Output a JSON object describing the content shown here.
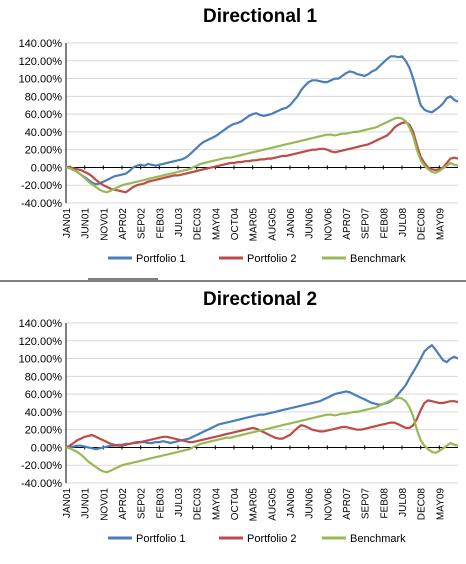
{
  "colors": {
    "portfolio_1": "#4a7ebb",
    "portfolio_2": "#be4b48",
    "benchmark": "#98b954"
  },
  "chart_data": [
    {
      "type": "line",
      "title": "Directional 1",
      "xlabel": "",
      "ylabel": "",
      "ylim": [
        -0.4,
        1.4
      ],
      "yticks": [
        "140.00%",
        "120.00%",
        "100.00%",
        "80.00%",
        "60.00%",
        "40.00%",
        "20.00%",
        "0.00%",
        "-20.00%",
        "-40.00%"
      ],
      "xticks": [
        "JAN01",
        "JUN01",
        "NOV01",
        "APR02",
        "SEP02",
        "FEB03",
        "JUL03",
        "DEC03",
        "MAY04",
        "OCT04",
        "MAR05",
        "AUG05",
        "JAN06",
        "JUN06",
        "NOV06",
        "APR07",
        "SEP07",
        "FEB08",
        "JUL08",
        "DEC08",
        "MAY09"
      ],
      "legend": "bottom",
      "grid": true,
      "x_start": "JAN01",
      "x_step": "1 month",
      "series": [
        {
          "name": "Portfolio 1",
          "color_key": "portfolio_1",
          "values": [
            0.0,
            0.01,
            -0.02,
            -0.05,
            -0.08,
            -0.11,
            -0.14,
            -0.17,
            -0.19,
            -0.18,
            -0.16,
            -0.14,
            -0.12,
            -0.1,
            -0.09,
            -0.08,
            -0.07,
            -0.04,
            0.0,
            0.02,
            0.03,
            0.02,
            0.04,
            0.03,
            0.02,
            0.03,
            0.04,
            0.05,
            0.06,
            0.07,
            0.08,
            0.09,
            0.11,
            0.14,
            0.18,
            0.22,
            0.26,
            0.29,
            0.31,
            0.33,
            0.35,
            0.38,
            0.41,
            0.44,
            0.47,
            0.49,
            0.5,
            0.52,
            0.55,
            0.58,
            0.6,
            0.61,
            0.59,
            0.58,
            0.59,
            0.6,
            0.62,
            0.64,
            0.66,
            0.67,
            0.7,
            0.75,
            0.8,
            0.87,
            0.92,
            0.96,
            0.98,
            0.98,
            0.97,
            0.96,
            0.96,
            0.98,
            1.0,
            1.0,
            1.03,
            1.06,
            1.08,
            1.07,
            1.05,
            1.04,
            1.03,
            1.05,
            1.08,
            1.1,
            1.14,
            1.18,
            1.22,
            1.25,
            1.25,
            1.24,
            1.25,
            1.2,
            1.12,
            1.0,
            0.85,
            0.7,
            0.65,
            0.63,
            0.62,
            0.65,
            0.68,
            0.72,
            0.78,
            0.8,
            0.76,
            0.74
          ]
        },
        {
          "name": "Portfolio 2",
          "color_key": "portfolio_2",
          "values": [
            0.0,
            0.0,
            -0.01,
            -0.02,
            -0.03,
            -0.05,
            -0.07,
            -0.1,
            -0.14,
            -0.17,
            -0.2,
            -0.22,
            -0.24,
            -0.25,
            -0.26,
            -0.27,
            -0.28,
            -0.25,
            -0.22,
            -0.2,
            -0.19,
            -0.18,
            -0.16,
            -0.15,
            -0.14,
            -0.13,
            -0.12,
            -0.11,
            -0.1,
            -0.09,
            -0.09,
            -0.08,
            -0.07,
            -0.06,
            -0.05,
            -0.04,
            -0.03,
            -0.02,
            -0.01,
            0.0,
            0.01,
            0.02,
            0.03,
            0.04,
            0.05,
            0.05,
            0.06,
            0.06,
            0.07,
            0.07,
            0.08,
            0.08,
            0.09,
            0.09,
            0.1,
            0.1,
            0.11,
            0.12,
            0.13,
            0.13,
            0.14,
            0.15,
            0.16,
            0.17,
            0.18,
            0.19,
            0.2,
            0.2,
            0.21,
            0.21,
            0.2,
            0.18,
            0.17,
            0.18,
            0.19,
            0.2,
            0.21,
            0.22,
            0.23,
            0.24,
            0.25,
            0.26,
            0.28,
            0.3,
            0.32,
            0.34,
            0.36,
            0.4,
            0.45,
            0.48,
            0.5,
            0.51,
            0.48,
            0.4,
            0.25,
            0.12,
            0.05,
            0.0,
            -0.02,
            -0.03,
            -0.02,
            0.0,
            0.05,
            0.1,
            0.11,
            0.1
          ]
        },
        {
          "name": "Benchmark",
          "color_key": "benchmark",
          "values": [
            0.0,
            -0.01,
            -0.03,
            -0.05,
            -0.08,
            -0.12,
            -0.16,
            -0.19,
            -0.22,
            -0.25,
            -0.27,
            -0.28,
            -0.26,
            -0.24,
            -0.22,
            -0.2,
            -0.19,
            -0.18,
            -0.17,
            -0.16,
            -0.15,
            -0.14,
            -0.13,
            -0.12,
            -0.11,
            -0.1,
            -0.09,
            -0.08,
            -0.07,
            -0.06,
            -0.05,
            -0.04,
            -0.03,
            -0.02,
            0.0,
            0.02,
            0.04,
            0.05,
            0.06,
            0.07,
            0.08,
            0.09,
            0.1,
            0.11,
            0.11,
            0.12,
            0.13,
            0.14,
            0.15,
            0.16,
            0.17,
            0.18,
            0.19,
            0.2,
            0.21,
            0.22,
            0.23,
            0.24,
            0.25,
            0.26,
            0.27,
            0.28,
            0.29,
            0.3,
            0.31,
            0.32,
            0.33,
            0.34,
            0.35,
            0.36,
            0.37,
            0.37,
            0.36,
            0.37,
            0.38,
            0.38,
            0.39,
            0.4,
            0.4,
            0.41,
            0.42,
            0.43,
            0.44,
            0.45,
            0.47,
            0.49,
            0.51,
            0.53,
            0.55,
            0.56,
            0.55,
            0.52,
            0.45,
            0.35,
            0.2,
            0.08,
            0.02,
            -0.02,
            -0.05,
            -0.06,
            -0.04,
            -0.01,
            0.02,
            0.05,
            0.03,
            0.02
          ]
        }
      ]
    },
    {
      "type": "line",
      "title": "Directional 2",
      "xlabel": "",
      "ylabel": "",
      "ylim": [
        -0.4,
        1.4
      ],
      "yticks": [
        "140.00%",
        "120.00%",
        "100.00%",
        "80.00%",
        "60.00%",
        "40.00%",
        "20.00%",
        "0.00%",
        "-20.00%",
        "-40.00%"
      ],
      "xticks": [
        "JAN01",
        "JUN01",
        "NOV01",
        "APR02",
        "SEP02",
        "FEB03",
        "JUL03",
        "DEC03",
        "MAY04",
        "OCT04",
        "MAR05",
        "AUG05",
        "JAN06",
        "JUN06",
        "NOV06",
        "APR07",
        "SEP07",
        "FEB08",
        "JUL08",
        "DEC08",
        "MAY09"
      ],
      "legend": "bottom",
      "grid": true,
      "x_start": "JAN01",
      "x_step": "1 month",
      "series": [
        {
          "name": "Portfolio 1",
          "color_key": "portfolio_1",
          "values": [
            0.0,
            0.0,
            0.01,
            0.02,
            0.02,
            0.01,
            0.0,
            -0.01,
            -0.02,
            -0.01,
            0.0,
            0.01,
            0.02,
            0.02,
            0.03,
            0.03,
            0.04,
            0.04,
            0.05,
            0.05,
            0.06,
            0.06,
            0.05,
            0.05,
            0.06,
            0.06,
            0.07,
            0.06,
            0.05,
            0.06,
            0.07,
            0.08,
            0.09,
            0.1,
            0.12,
            0.14,
            0.16,
            0.18,
            0.2,
            0.22,
            0.24,
            0.26,
            0.27,
            0.28,
            0.29,
            0.3,
            0.31,
            0.32,
            0.33,
            0.34,
            0.35,
            0.36,
            0.37,
            0.37,
            0.38,
            0.39,
            0.4,
            0.41,
            0.42,
            0.43,
            0.44,
            0.45,
            0.46,
            0.47,
            0.48,
            0.49,
            0.5,
            0.51,
            0.52,
            0.54,
            0.56,
            0.58,
            0.6,
            0.61,
            0.62,
            0.63,
            0.62,
            0.6,
            0.58,
            0.56,
            0.54,
            0.52,
            0.5,
            0.49,
            0.48,
            0.49,
            0.5,
            0.52,
            0.55,
            0.6,
            0.65,
            0.7,
            0.78,
            0.85,
            0.92,
            1.0,
            1.08,
            1.12,
            1.15,
            1.1,
            1.04,
            0.98,
            0.96,
            1.0,
            1.02,
            1.0
          ]
        },
        {
          "name": "Portfolio 2",
          "color_key": "portfolio_2",
          "values": [
            0.0,
            0.02,
            0.05,
            0.08,
            0.1,
            0.12,
            0.13,
            0.14,
            0.12,
            0.1,
            0.08,
            0.06,
            0.04,
            0.03,
            0.02,
            0.02,
            0.03,
            0.04,
            0.05,
            0.06,
            0.06,
            0.07,
            0.08,
            0.09,
            0.1,
            0.11,
            0.12,
            0.12,
            0.11,
            0.1,
            0.09,
            0.08,
            0.07,
            0.06,
            0.06,
            0.07,
            0.08,
            0.09,
            0.1,
            0.11,
            0.12,
            0.13,
            0.14,
            0.15,
            0.16,
            0.17,
            0.18,
            0.19,
            0.2,
            0.21,
            0.22,
            0.21,
            0.19,
            0.17,
            0.15,
            0.13,
            0.11,
            0.1,
            0.1,
            0.12,
            0.14,
            0.18,
            0.22,
            0.25,
            0.24,
            0.22,
            0.2,
            0.19,
            0.18,
            0.18,
            0.19,
            0.2,
            0.21,
            0.22,
            0.23,
            0.23,
            0.22,
            0.21,
            0.2,
            0.2,
            0.21,
            0.22,
            0.23,
            0.24,
            0.25,
            0.26,
            0.27,
            0.28,
            0.28,
            0.26,
            0.24,
            0.22,
            0.22,
            0.25,
            0.32,
            0.42,
            0.5,
            0.53,
            0.52,
            0.51,
            0.5,
            0.5,
            0.51,
            0.52,
            0.52,
            0.51
          ]
        },
        {
          "name": "Benchmark",
          "color_key": "benchmark",
          "values": [
            0.0,
            -0.01,
            -0.03,
            -0.05,
            -0.08,
            -0.12,
            -0.16,
            -0.19,
            -0.22,
            -0.25,
            -0.27,
            -0.28,
            -0.26,
            -0.24,
            -0.22,
            -0.2,
            -0.19,
            -0.18,
            -0.17,
            -0.16,
            -0.15,
            -0.14,
            -0.13,
            -0.12,
            -0.11,
            -0.1,
            -0.09,
            -0.08,
            -0.07,
            -0.06,
            -0.05,
            -0.04,
            -0.03,
            -0.02,
            0.0,
            0.02,
            0.04,
            0.05,
            0.06,
            0.07,
            0.08,
            0.09,
            0.1,
            0.11,
            0.11,
            0.12,
            0.13,
            0.14,
            0.15,
            0.16,
            0.17,
            0.18,
            0.19,
            0.2,
            0.21,
            0.22,
            0.23,
            0.24,
            0.25,
            0.26,
            0.27,
            0.28,
            0.29,
            0.3,
            0.31,
            0.32,
            0.33,
            0.34,
            0.35,
            0.36,
            0.37,
            0.37,
            0.36,
            0.37,
            0.38,
            0.38,
            0.39,
            0.4,
            0.4,
            0.41,
            0.42,
            0.43,
            0.44,
            0.45,
            0.47,
            0.49,
            0.51,
            0.53,
            0.55,
            0.56,
            0.55,
            0.52,
            0.45,
            0.35,
            0.2,
            0.08,
            0.02,
            -0.02,
            -0.05,
            -0.06,
            -0.04,
            -0.01,
            0.02,
            0.05,
            0.03,
            0.02
          ]
        }
      ]
    }
  ]
}
